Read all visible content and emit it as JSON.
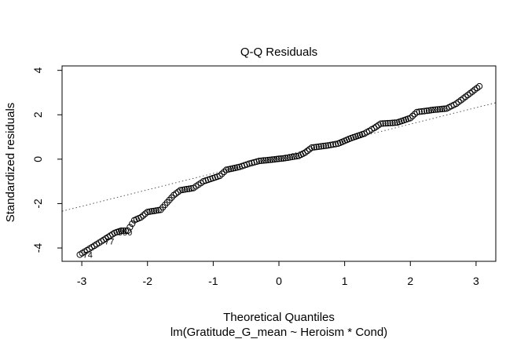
{
  "chart_data": {
    "type": "scatter",
    "title": "Q-Q Residuals",
    "xlabel": "Theoretical Quantiles",
    "subtitle": "lm(Gratitude_G_mean ~ Heroism * Cond)",
    "ylabel": "Standardized residuals",
    "xlim": [
      -3.3,
      3.3
    ],
    "ylim": [
      -4.6,
      4.2
    ],
    "xticks": [
      -3,
      -2,
      -1,
      0,
      1,
      2,
      3
    ],
    "yticks": [
      -4,
      -2,
      0,
      2,
      4
    ],
    "reference_line": {
      "style": "dotted",
      "slope": 0.74,
      "intercept": 0.1
    },
    "point_labels": [
      {
        "text": "74",
        "x": -3.03,
        "y": -4.3
      },
      {
        "text": "77",
        "x": -2.7,
        "y": -3.7
      },
      {
        "text": "550",
        "x": -2.5,
        "y": -3.3
      }
    ],
    "anchors": [
      [
        -3.03,
        -4.3
      ],
      [
        -2.7,
        -3.7
      ],
      [
        -2.5,
        -3.32
      ],
      [
        -2.4,
        -3.22
      ],
      [
        -2.3,
        -3.22
      ],
      [
        -2.2,
        -2.75
      ],
      [
        -2.1,
        -2.62
      ],
      [
        -2.0,
        -2.38
      ],
      [
        -1.8,
        -2.28
      ],
      [
        -1.7,
        -1.95
      ],
      [
        -1.6,
        -1.62
      ],
      [
        -1.5,
        -1.4
      ],
      [
        -1.3,
        -1.3
      ],
      [
        -1.15,
        -1.0
      ],
      [
        -0.9,
        -0.75
      ],
      [
        -0.8,
        -0.48
      ],
      [
        -0.6,
        -0.35
      ],
      [
        -0.45,
        -0.2
      ],
      [
        -0.3,
        -0.08
      ],
      [
        -0.1,
        -0.02
      ],
      [
        0.1,
        0.05
      ],
      [
        0.3,
        0.15
      ],
      [
        0.4,
        0.3
      ],
      [
        0.5,
        0.52
      ],
      [
        0.75,
        0.62
      ],
      [
        0.9,
        0.7
      ],
      [
        1.1,
        0.95
      ],
      [
        1.3,
        1.15
      ],
      [
        1.45,
        1.4
      ],
      [
        1.55,
        1.6
      ],
      [
        1.8,
        1.65
      ],
      [
        2.0,
        1.85
      ],
      [
        2.1,
        2.12
      ],
      [
        2.25,
        2.18
      ],
      [
        2.35,
        2.22
      ],
      [
        2.55,
        2.28
      ],
      [
        2.7,
        2.5
      ],
      [
        3.05,
        3.28
      ]
    ]
  }
}
